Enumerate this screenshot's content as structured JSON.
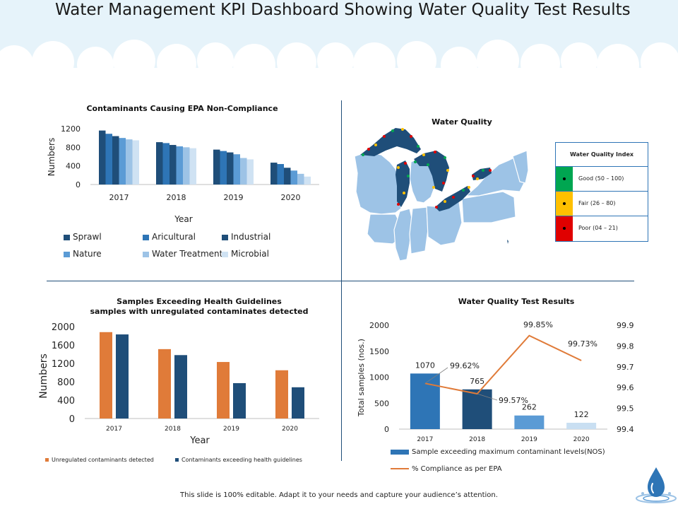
{
  "page": {
    "title": "Water Management KPI Dashboard Showing Water Quality Test Results",
    "footer": "This slide is 100% editable. Adapt it to your needs and capture your audience’s attention."
  },
  "colors": {
    "header_sky": "#e6f3fa",
    "cloud": "#ffffff",
    "divider": "#1f4e79",
    "orange": "#e07b39",
    "dark_blue": "#1f4e79",
    "mid_blue": "#2e75b6",
    "light_blue": "#bdd7ee",
    "map_fill": "#9dc3e6",
    "lake_fill": "#1f4e79"
  },
  "icons": {
    "drop": "water-drop-icon"
  },
  "water_quality": {
    "title": "Water Quality",
    "index": {
      "title": "Water Quality Index",
      "rows": [
        {
          "label": "Good (50 – 100)",
          "color": "#00a651"
        },
        {
          "label": "Fair (26 – 80)",
          "color": "#ffc000"
        },
        {
          "label": "Poor (04 – 21)",
          "color": "#e00000"
        }
      ]
    }
  },
  "chart_data": [
    {
      "id": "epa",
      "type": "bar",
      "title": "Contaminants Causing EPA Non-Compliance",
      "xlabel": "Year",
      "ylabel": "Numbers",
      "categories": [
        "2017",
        "2018",
        "2019",
        "2020"
      ],
      "yticks": [
        "0",
        "400",
        "800",
        "1200"
      ],
      "ylim": [
        0,
        1200
      ],
      "grid": false,
      "legend_position": "bottom",
      "series": [
        {
          "name": "Sprawl",
          "color": "#1f4e79",
          "values": [
            1160,
            910,
            750,
            470
          ]
        },
        {
          "name": "Aricultural",
          "color": "#2e75b6",
          "values": [
            1090,
            890,
            720,
            440
          ]
        },
        {
          "name": "Industrial",
          "color": "#1f4e79",
          "values": [
            1040,
            850,
            690,
            360
          ]
        },
        {
          "name": "Nature",
          "color": "#5b9bd5",
          "values": [
            1000,
            820,
            650,
            300
          ]
        },
        {
          "name": "Water Treatment",
          "color": "#9dc3e6",
          "values": [
            970,
            800,
            570,
            230
          ]
        },
        {
          "name": "Microbial",
          "color": "#cfe2f3",
          "values": [
            950,
            780,
            540,
            170
          ]
        }
      ]
    },
    {
      "id": "samples",
      "type": "bar",
      "title": "Samples Exceeding Health Guidelines",
      "subtitle": "samples with unregulated contaminates detected",
      "xlabel": "Year",
      "ylabel": "Numbers",
      "categories": [
        "2017",
        "2018",
        "2019",
        "2020"
      ],
      "yticks": [
        "0",
        "400",
        "800",
        "1200",
        "1600",
        "2000"
      ],
      "ylim": [
        0,
        2000
      ],
      "grid": false,
      "legend_position": "bottom",
      "series": [
        {
          "name": "Unregulated contaminants detected",
          "color": "#e07b39",
          "values": [
            1880,
            1510,
            1230,
            1050
          ]
        },
        {
          "name": "Contaminants exceeding health guidelines",
          "color": "#1f4e79",
          "values": [
            1830,
            1380,
            770,
            680
          ]
        }
      ]
    },
    {
      "id": "tests",
      "type": "bar",
      "title": "Water Quality Test Results",
      "xlabel": "",
      "ylabel": "Total samples (nos.)",
      "categories": [
        "2017",
        "2018",
        "2019",
        "2020"
      ],
      "yticks": [
        "0",
        "500",
        "1000",
        "1500",
        "2000"
      ],
      "ylim": [
        0,
        2000
      ],
      "y2ticks": [
        "99.4",
        "99.5",
        "99.6",
        "99.7",
        "99.8",
        "99.9"
      ],
      "y2lim": [
        99.4,
        99.9
      ],
      "grid": false,
      "legend_position": "bottom",
      "bars": {
        "name": "Sample exceeding maximum contaminant levels(NOS)",
        "values": [
          1070,
          765,
          262,
          122
        ],
        "labels": [
          "1070",
          "765",
          "262",
          "122"
        ],
        "colors": [
          "#2e75b6",
          "#1f4e79",
          "#5b9bd5",
          "#c9dff2"
        ],
        "legend_color": "#2e75b6"
      },
      "line": {
        "name": "% Compliance as per EPA",
        "values": [
          99.62,
          99.57,
          99.85,
          99.73
        ],
        "labels": [
          "99.62%",
          "99.57%",
          "99.85%",
          "99.73%"
        ],
        "color": "#e07b39"
      }
    }
  ]
}
